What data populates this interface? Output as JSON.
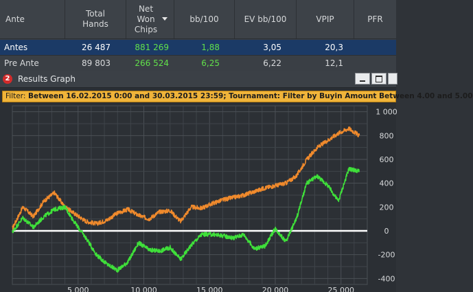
{
  "table": {
    "columns": [
      {
        "key": "ante",
        "label": "Ante"
      },
      {
        "key": "total_hands",
        "label": "Total\nHands"
      },
      {
        "key": "net_won",
        "label": "Net\nWon\nChips",
        "sorted": "descending"
      },
      {
        "key": "bb100",
        "label": "bb/100"
      },
      {
        "key": "ev_bb100",
        "label": "EV bb/100"
      },
      {
        "key": "vpip",
        "label": "VPIP"
      },
      {
        "key": "pfr",
        "label": "PFR"
      }
    ],
    "rows": [
      {
        "ante": "Antes",
        "total_hands": "26 487",
        "net_won": "881 269",
        "bb100": "1,88",
        "ev_bb100": "3,05",
        "vpip": "20,3",
        "selected": true
      },
      {
        "ante": "Pre Ante",
        "total_hands": "89 803",
        "net_won": "266 524",
        "bb100": "6,25",
        "ev_bb100": "6,22",
        "vpip": "12,1",
        "selected": false
      }
    ]
  },
  "graph_window": {
    "icon_label": "2",
    "title": "Results Graph",
    "filter_prefix": "Filter:",
    "filter_text": "Between 16.02.2015 0:00 and 30.03.2015 23:59; Tournament: Filter by Buyin Amount  Between 4.00 and 5.00",
    "icons": [
      "minimize-icon",
      "maximize-icon",
      "close-icon"
    ]
  },
  "chart_data": {
    "type": "line",
    "xlabel": "",
    "ylabel": "",
    "xlim": [
      0,
      27000
    ],
    "ylim": [
      -450,
      1050
    ],
    "x_ticks": [
      5000,
      10000,
      15000,
      20000,
      25000
    ],
    "x_tick_labels": [
      "5 000",
      "10 000",
      "15 000",
      "20 000",
      "25 000"
    ],
    "y_ticks": [
      1000,
      800,
      600,
      400,
      200,
      0,
      -200,
      -400
    ],
    "y_tick_labels": [
      "1 000",
      "800",
      "600",
      "400",
      "200",
      "0",
      "-200",
      "-400"
    ],
    "grid": true,
    "colors": {
      "orange": "#f08a2c",
      "green": "#3fe03a",
      "zero_line": "#ffffff",
      "background": "#2c3035",
      "grid": "#3f444a"
    },
    "series": [
      {
        "color": "#f08a2c",
        "x": [
          0,
          800,
          1600,
          2400,
          3200,
          4000,
          4800,
          5600,
          6400,
          7200,
          8000,
          8800,
          9600,
          10400,
          11200,
          12000,
          12800,
          13600,
          14400,
          15200,
          16000,
          16800,
          17600,
          18400,
          19200,
          20000,
          20800,
          21600,
          22400,
          23200,
          24000,
          24800,
          25600,
          26400
        ],
        "y": [
          20,
          200,
          120,
          250,
          320,
          200,
          140,
          80,
          60,
          90,
          150,
          180,
          130,
          100,
          160,
          170,
          80,
          200,
          190,
          230,
          260,
          280,
          300,
          330,
          360,
          380,
          400,
          460,
          600,
          700,
          760,
          820,
          860,
          800
        ]
      },
      {
        "color": "#3fe03a",
        "x": [
          0,
          800,
          1600,
          2400,
          3200,
          4000,
          4800,
          5600,
          6400,
          7200,
          8000,
          8800,
          9600,
          10400,
          11200,
          12000,
          12800,
          13600,
          14400,
          15200,
          16000,
          16800,
          17600,
          18400,
          19200,
          20000,
          20800,
          21600,
          22400,
          23200,
          24000,
          24800,
          25600,
          26400
        ],
        "y": [
          -10,
          110,
          30,
          120,
          180,
          200,
          60,
          -60,
          -200,
          -280,
          -330,
          -260,
          -100,
          -160,
          -170,
          -140,
          -240,
          -120,
          -30,
          -30,
          -40,
          -60,
          -30,
          -150,
          -130,
          20,
          -90,
          100,
          400,
          460,
          380,
          250,
          520,
          500
        ]
      }
    ],
    "zero_line": 0
  }
}
